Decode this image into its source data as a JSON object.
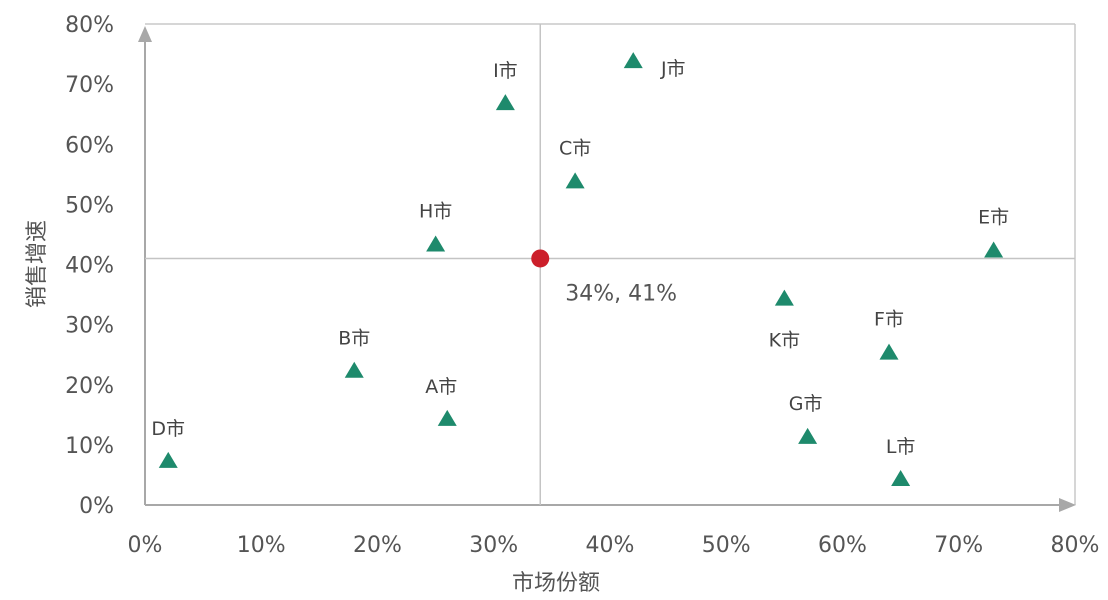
{
  "chart_data": {
    "type": "scatter",
    "title": "",
    "xlabel": "市场份额",
    "ylabel": "销售增速",
    "xlim": [
      0,
      80
    ],
    "ylim": [
      0,
      80
    ],
    "x_ticks": [
      "0%",
      "10%",
      "20%",
      "30%",
      "40%",
      "50%",
      "60%",
      "70%",
      "80%"
    ],
    "y_ticks": [
      "0%",
      "10%",
      "20%",
      "30%",
      "40%",
      "50%",
      "60%",
      "70%",
      "80%"
    ],
    "grid": false,
    "marker_color": "#1e8a6c",
    "points": [
      {
        "label": "D市",
        "x": 2,
        "y": 7.5
      },
      {
        "label": "B市",
        "x": 18,
        "y": 22.5
      },
      {
        "label": "A市",
        "x": 26,
        "y": 14.5
      },
      {
        "label": "H市",
        "x": 25,
        "y": 43.5
      },
      {
        "label": "I市",
        "x": 31,
        "y": 67
      },
      {
        "label": "C市",
        "x": 37,
        "y": 54
      },
      {
        "label": "J市",
        "x": 42,
        "y": 74
      },
      {
        "label": "K市",
        "x": 55,
        "y": 34.5
      },
      {
        "label": "G市",
        "x": 57,
        "y": 11.5
      },
      {
        "label": "F市",
        "x": 64,
        "y": 25.5
      },
      {
        "label": "L市",
        "x": 65,
        "y": 4.5
      },
      {
        "label": "E市",
        "x": 73,
        "y": 42.5
      }
    ],
    "center": {
      "x": 34,
      "y": 41,
      "label": "34%, 41%",
      "color": "#cc1f2a"
    }
  }
}
